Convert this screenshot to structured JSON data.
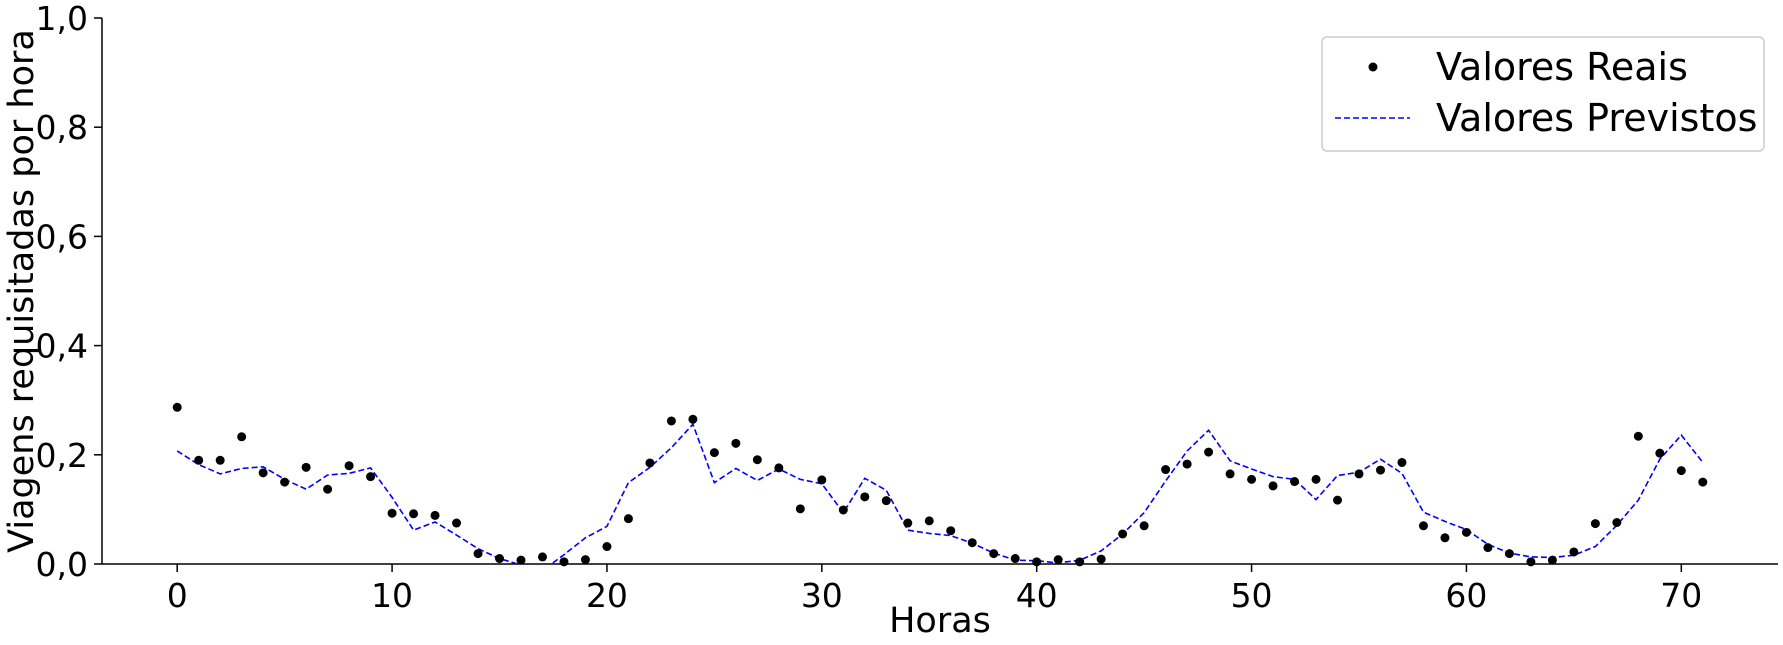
{
  "chart_data": {
    "type": "line",
    "title": "",
    "xlabel": "Horas",
    "ylabel": "Viagens requisitadas por hora",
    "xlim": [
      -3.5,
      74.5
    ],
    "ylim": [
      0,
      1.0
    ],
    "xticks": [
      0,
      10,
      20,
      30,
      40,
      50,
      60,
      70
    ],
    "xtick_labels": [
      "0",
      "10",
      "20",
      "30",
      "40",
      "50",
      "60",
      "70"
    ],
    "yticks": [
      0,
      0.2,
      0.4,
      0.6,
      0.8,
      1.0
    ],
    "ytick_labels": [
      "0,0",
      "0,2",
      "0,4",
      "0,6",
      "0,8",
      "1,0"
    ],
    "grid": false,
    "legend_position": "top-right",
    "x": [
      0,
      1,
      2,
      3,
      4,
      5,
      6,
      7,
      8,
      9,
      10,
      11,
      12,
      13,
      14,
      15,
      16,
      17,
      18,
      19,
      20,
      21,
      22,
      23,
      24,
      25,
      26,
      27,
      28,
      29,
      30,
      31,
      32,
      33,
      34,
      35,
      36,
      37,
      38,
      39,
      40,
      41,
      42,
      43,
      44,
      45,
      46,
      47,
      48,
      49,
      50,
      51,
      52,
      53,
      54,
      55,
      56,
      57,
      58,
      59,
      60,
      61,
      62,
      63,
      64,
      65,
      66,
      67,
      68,
      69,
      70,
      71
    ],
    "series": [
      {
        "name": "Valores Reais",
        "kind": "scatter",
        "color": "#000000",
        "values": [
          0.287,
          0.19,
          0.19,
          0.233,
          0.167,
          0.15,
          0.177,
          0.137,
          0.18,
          0.16,
          0.093,
          0.092,
          0.089,
          0.075,
          0.019,
          0.01,
          0.007,
          0.013,
          0.004,
          0.008,
          0.032,
          0.083,
          0.185,
          0.262,
          0.265,
          0.204,
          0.221,
          0.191,
          0.176,
          0.101,
          0.154,
          0.099,
          0.123,
          0.116,
          0.075,
          0.079,
          0.061,
          0.039,
          0.019,
          0.01,
          0.004,
          0.008,
          0.004,
          0.009,
          0.055,
          0.07,
          0.173,
          0.183,
          0.205,
          0.165,
          0.155,
          0.143,
          0.151,
          0.155,
          0.117,
          0.165,
          0.172,
          0.186,
          0.07,
          0.048,
          0.058,
          0.03,
          0.019,
          0.004,
          0.007,
          0.022,
          0.074,
          0.076,
          0.234,
          0.203,
          0.171,
          0.15
        ]
      },
      {
        "name": "Valores Previstos",
        "kind": "line",
        "color": "#0000ff",
        "values": [
          0.207,
          0.182,
          0.165,
          0.175,
          0.178,
          0.155,
          0.137,
          0.163,
          0.166,
          0.176,
          0.122,
          0.062,
          0.077,
          0.053,
          0.028,
          0.01,
          -0.002,
          -0.012,
          0.017,
          0.048,
          0.069,
          0.149,
          0.177,
          0.213,
          0.256,
          0.149,
          0.175,
          0.153,
          0.174,
          0.155,
          0.147,
          0.094,
          0.157,
          0.135,
          0.062,
          0.056,
          0.052,
          0.038,
          0.02,
          0.007,
          0.006,
          0.002,
          0.007,
          0.024,
          0.055,
          0.094,
          0.152,
          0.207,
          0.245,
          0.189,
          0.174,
          0.16,
          0.155,
          0.118,
          0.162,
          0.168,
          0.192,
          0.166,
          0.095,
          0.078,
          0.063,
          0.036,
          0.02,
          0.013,
          0.012,
          0.016,
          0.032,
          0.071,
          0.117,
          0.192,
          0.236,
          0.186
        ]
      }
    ]
  }
}
